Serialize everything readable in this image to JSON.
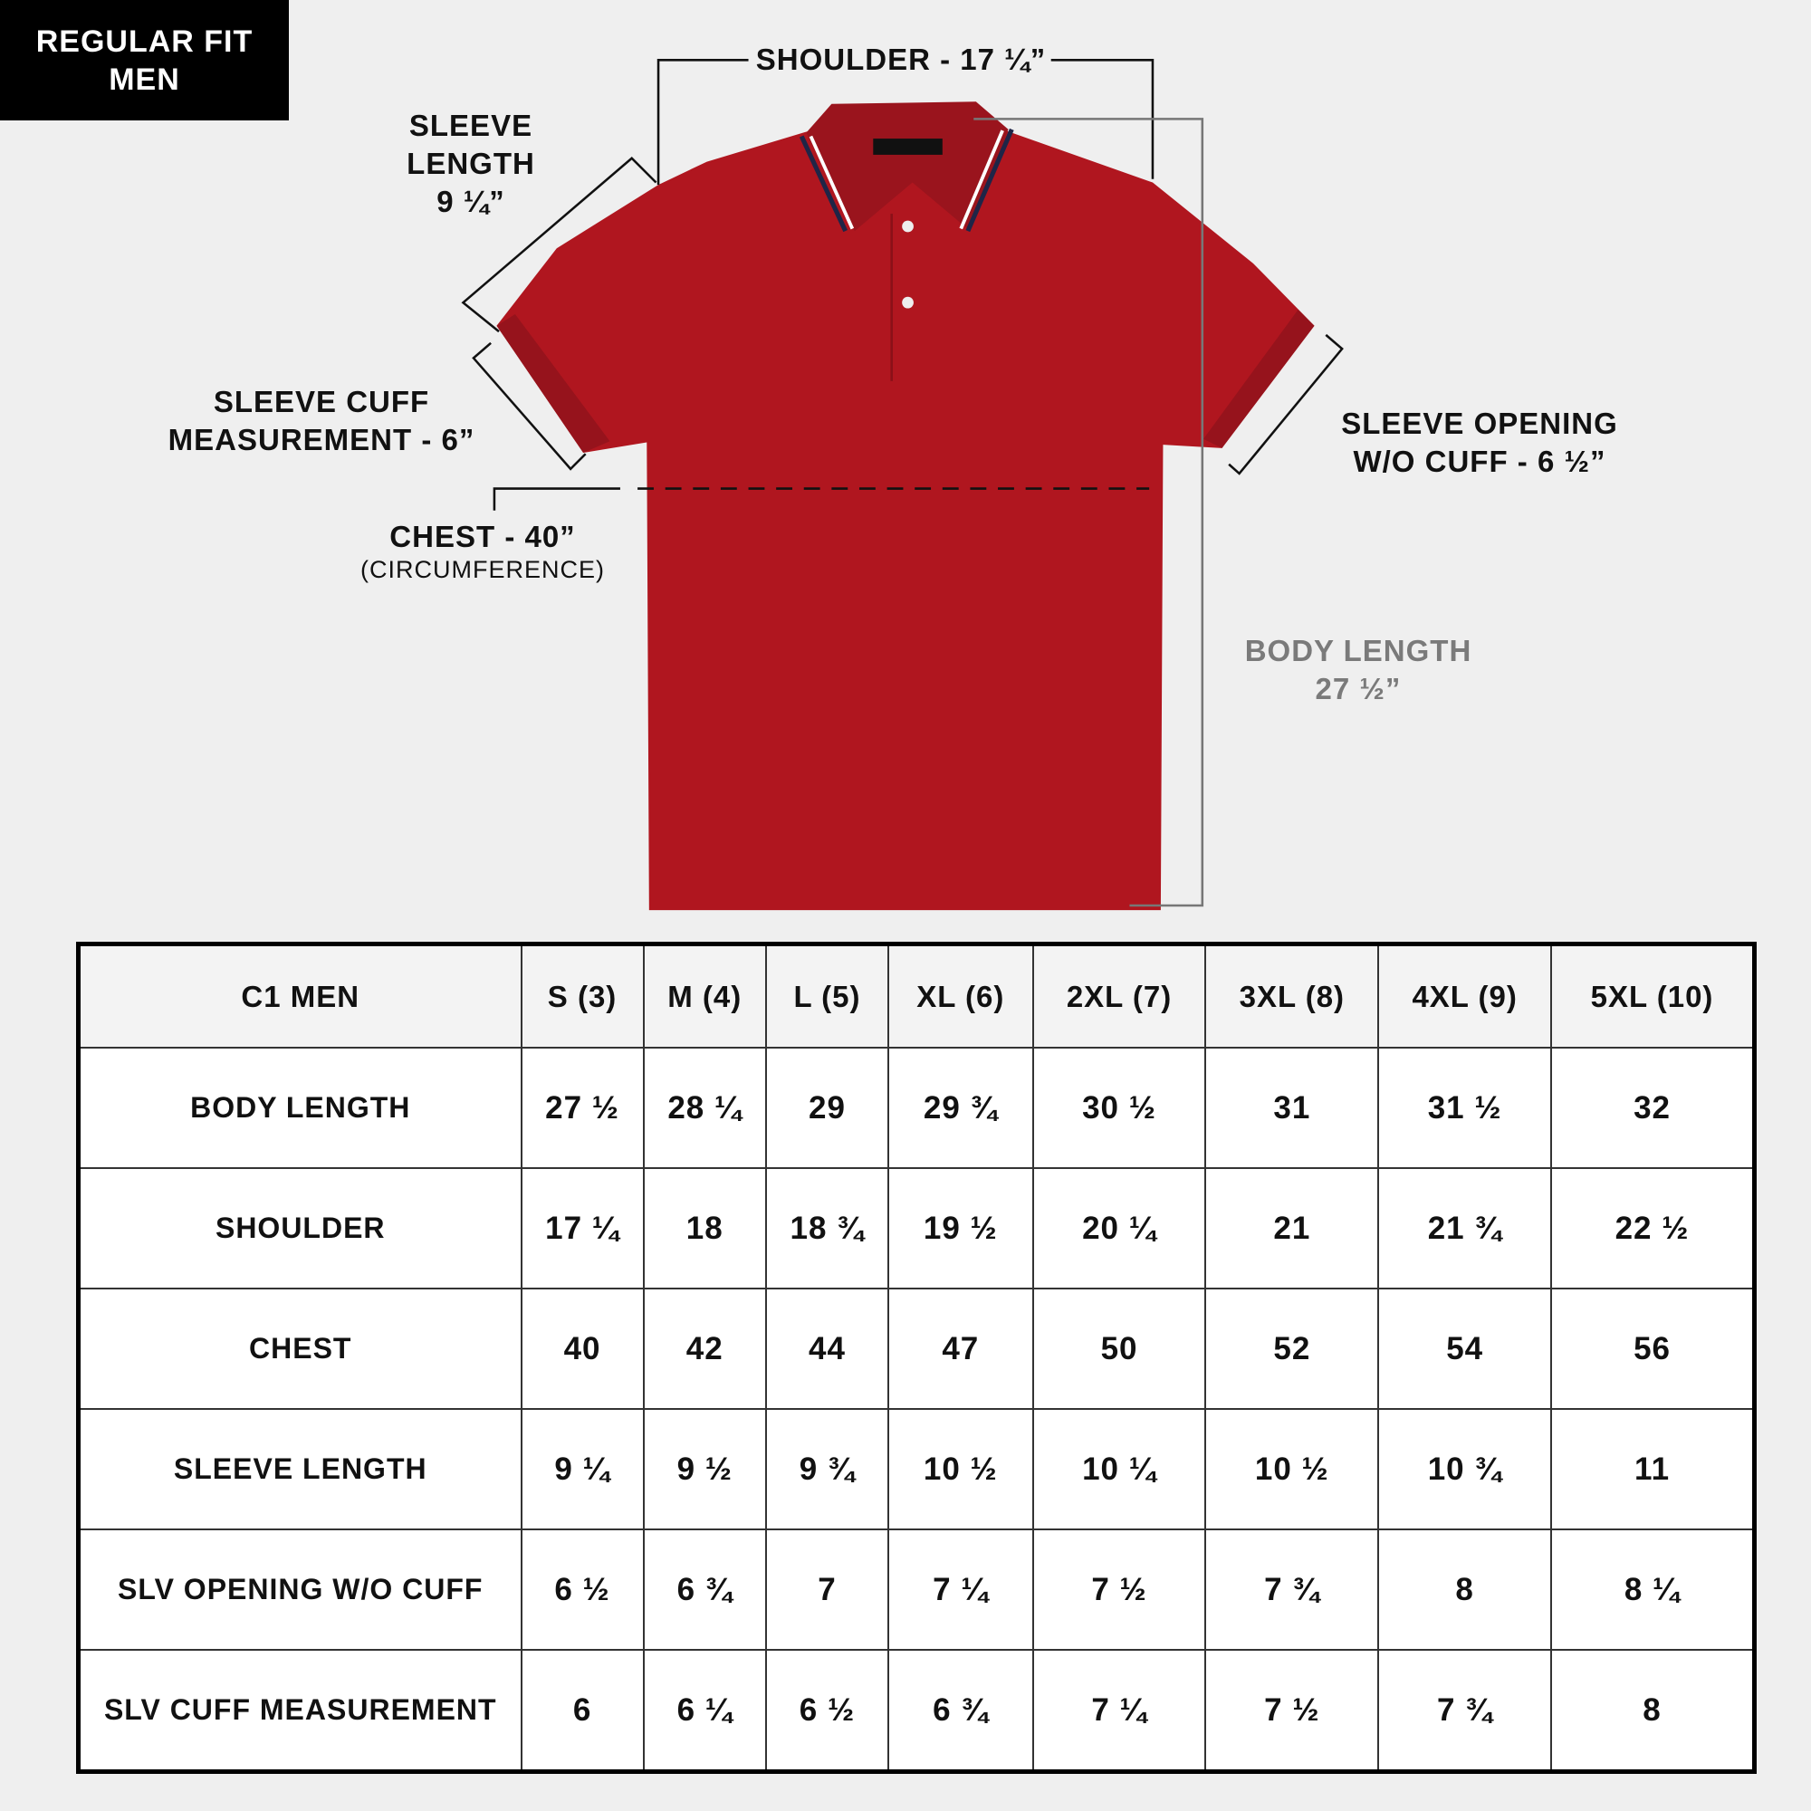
{
  "badge": {
    "line1": "REGULAR FIT",
    "line2": "MEN"
  },
  "labels": {
    "shoulder": "SHOULDER - 17 ¼”",
    "sleeve_length": [
      "SLEEVE",
      "LENGTH",
      "9 ¼”"
    ],
    "sleeve_cuff": [
      "SLEEVE CUFF",
      "MEASUREMENT - 6”"
    ],
    "chest": "CHEST - 40”",
    "chest_note": "(CIRCUMFERENCE)",
    "sleeve_opening": [
      "SLEEVE OPENING",
      "W/O CUFF - 6 ½”"
    ],
    "body_length": [
      "BODY LENGTH",
      "27 ½”"
    ]
  },
  "colors": {
    "shirt": "#b0161f",
    "rib": "#96131c",
    "collar_stripe_navy": "#1f2547",
    "badge_bg": "#000000",
    "background": "#efefef"
  },
  "table": {
    "headers": [
      "C1 MEN",
      "S (3)",
      "M (4)",
      "L (5)",
      "XL (6)",
      "2XL (7)",
      "3XL (8)",
      "4XL (9)",
      "5XL (10)"
    ],
    "rows": [
      {
        "label": "BODY LENGTH",
        "values": [
          "27 ½",
          "28 ¼",
          "29",
          "29 ¾",
          "30 ½",
          "31",
          "31 ½",
          "32"
        ]
      },
      {
        "label": "SHOULDER",
        "values": [
          "17 ¼",
          "18",
          "18 ¾",
          "19 ½",
          "20 ¼",
          "21",
          "21 ¾",
          "22 ½"
        ]
      },
      {
        "label": "CHEST",
        "values": [
          "40",
          "42",
          "44",
          "47",
          "50",
          "52",
          "54",
          "56"
        ]
      },
      {
        "label": "SLEEVE LENGTH",
        "values": [
          "9 ¼",
          "9 ½",
          "9 ¾",
          "10 ½",
          "10 ¼",
          "10 ½",
          "10 ¾",
          "11"
        ]
      },
      {
        "label": "SLV OPENING W/O CUFF",
        "values": [
          "6 ½",
          "6 ¾",
          "7",
          "7 ¼",
          "7 ½",
          "7 ¾",
          "8",
          "8 ¼"
        ]
      },
      {
        "label": "SLV CUFF MEASUREMENT",
        "values": [
          "6",
          "6 ¼",
          "6 ½",
          "6 ¾",
          "7 ¼",
          "7 ½",
          "7 ¾",
          "8"
        ]
      }
    ]
  }
}
